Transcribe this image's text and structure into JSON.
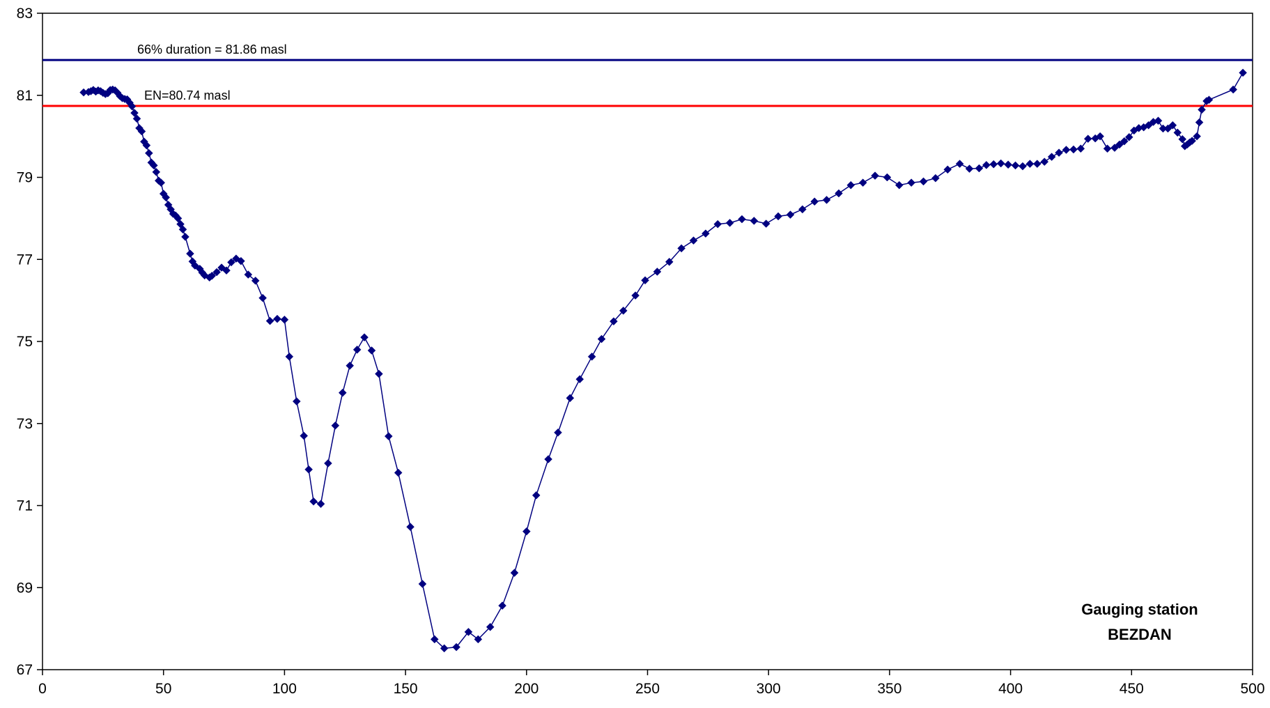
{
  "chart_data": {
    "type": "line",
    "title": "",
    "xlabel": "",
    "ylabel": "",
    "xlim": [
      0,
      500
    ],
    "ylim": [
      67,
      83
    ],
    "xticks": [
      "0",
      "50",
      "100",
      "150",
      "200",
      "250",
      "300",
      "350",
      "400",
      "450",
      "500"
    ],
    "yticks": [
      "67",
      "69",
      "71",
      "73",
      "75",
      "77",
      "79",
      "81",
      "83"
    ],
    "grid": false,
    "legend": "none",
    "annotation": {
      "line1": "Gauging station",
      "line2": "BEZDAN"
    },
    "reference_lines": [
      {
        "label": "66% duration = 81.86 masl",
        "y": 81.86,
        "color": "#000080"
      },
      {
        "label": "EN=80.74 masl",
        "y": 80.74,
        "color": "#ff0000"
      }
    ],
    "series": [
      {
        "color": "#000080",
        "marker": "diamond",
        "points": [
          [
            17,
            81.07
          ],
          [
            19,
            81.08
          ],
          [
            20,
            81.1
          ],
          [
            21,
            81.13
          ],
          [
            22,
            81.09
          ],
          [
            23,
            81.12
          ],
          [
            24,
            81.1
          ],
          [
            25,
            81.06
          ],
          [
            26,
            81.03
          ],
          [
            27,
            81.05
          ],
          [
            28,
            81.13
          ],
          [
            29,
            81.14
          ],
          [
            30,
            81.12
          ],
          [
            31,
            81.06
          ],
          [
            32,
            80.98
          ],
          [
            33,
            80.93
          ],
          [
            34,
            80.91
          ],
          [
            35,
            80.9
          ],
          [
            36,
            80.82
          ],
          [
            37,
            80.73
          ],
          [
            38,
            80.57
          ],
          [
            39,
            80.43
          ],
          [
            40,
            80.2
          ],
          [
            41,
            80.12
          ],
          [
            42,
            79.87
          ],
          [
            43,
            79.78
          ],
          [
            44,
            79.59
          ],
          [
            45,
            79.36
          ],
          [
            46,
            79.29
          ],
          [
            47,
            79.13
          ],
          [
            48,
            78.92
          ],
          [
            49,
            78.87
          ],
          [
            50,
            78.6
          ],
          [
            51,
            78.51
          ],
          [
            52,
            78.33
          ],
          [
            53,
            78.22
          ],
          [
            54,
            78.11
          ],
          [
            55,
            78.07
          ],
          [
            56,
            78.0
          ],
          [
            57,
            77.86
          ],
          [
            58,
            77.73
          ],
          [
            59,
            77.55
          ],
          [
            61,
            77.14
          ],
          [
            62,
            76.95
          ],
          [
            63,
            76.85
          ],
          [
            65,
            76.77
          ],
          [
            66,
            76.68
          ],
          [
            67,
            76.61
          ],
          [
            69,
            76.56
          ],
          [
            70,
            76.6
          ],
          [
            72,
            76.69
          ],
          [
            74,
            76.8
          ],
          [
            76,
            76.73
          ],
          [
            78,
            76.93
          ],
          [
            80,
            77.02
          ],
          [
            82,
            76.96
          ],
          [
            85,
            76.63
          ],
          [
            88,
            76.48
          ],
          [
            91,
            76.06
          ],
          [
            94,
            75.5
          ],
          [
            97,
            75.55
          ],
          [
            100,
            75.53
          ],
          [
            102,
            74.63
          ],
          [
            105,
            73.54
          ],
          [
            108,
            72.7
          ],
          [
            110,
            71.88
          ],
          [
            112,
            71.1
          ],
          [
            115,
            71.04
          ],
          [
            118,
            72.03
          ],
          [
            121,
            72.95
          ],
          [
            124,
            73.75
          ],
          [
            127,
            74.41
          ],
          [
            130,
            74.8
          ],
          [
            133,
            75.1
          ],
          [
            136,
            74.78
          ],
          [
            139,
            74.21
          ],
          [
            143,
            72.69
          ],
          [
            147,
            71.8
          ],
          [
            152,
            70.48
          ],
          [
            157,
            69.09
          ],
          [
            162,
            67.74
          ],
          [
            166,
            67.52
          ],
          [
            171,
            67.55
          ],
          [
            176,
            67.92
          ],
          [
            180,
            67.74
          ],
          [
            185,
            68.04
          ],
          [
            190,
            68.56
          ],
          [
            195,
            69.36
          ],
          [
            200,
            70.37
          ],
          [
            204,
            71.25
          ],
          [
            209,
            72.13
          ],
          [
            213,
            72.78
          ],
          [
            218,
            73.62
          ],
          [
            222,
            74.08
          ],
          [
            227,
            74.63
          ],
          [
            231,
            75.06
          ],
          [
            236,
            75.49
          ],
          [
            240,
            75.75
          ],
          [
            245,
            76.12
          ],
          [
            249,
            76.49
          ],
          [
            254,
            76.7
          ],
          [
            259,
            76.94
          ],
          [
            264,
            77.27
          ],
          [
            269,
            77.46
          ],
          [
            274,
            77.63
          ],
          [
            279,
            77.86
          ],
          [
            284,
            77.89
          ],
          [
            289,
            77.98
          ],
          [
            294,
            77.94
          ],
          [
            299,
            77.87
          ],
          [
            304,
            78.05
          ],
          [
            309,
            78.09
          ],
          [
            314,
            78.22
          ],
          [
            319,
            78.41
          ],
          [
            324,
            78.45
          ],
          [
            329,
            78.61
          ],
          [
            334,
            78.81
          ],
          [
            339,
            78.87
          ],
          [
            344,
            79.04
          ],
          [
            349,
            79.0
          ],
          [
            354,
            78.81
          ],
          [
            359,
            78.87
          ],
          [
            364,
            78.9
          ],
          [
            369,
            78.98
          ],
          [
            374,
            79.19
          ],
          [
            379,
            79.33
          ],
          [
            383,
            79.21
          ],
          [
            387,
            79.22
          ],
          [
            390,
            79.3
          ],
          [
            393,
            79.32
          ],
          [
            396,
            79.34
          ],
          [
            399,
            79.31
          ],
          [
            402,
            79.29
          ],
          [
            405,
            79.27
          ],
          [
            408,
            79.33
          ],
          [
            411,
            79.33
          ],
          [
            414,
            79.38
          ],
          [
            417,
            79.5
          ],
          [
            420,
            79.6
          ],
          [
            423,
            79.67
          ],
          [
            426,
            79.68
          ],
          [
            429,
            79.7
          ],
          [
            432,
            79.94
          ],
          [
            435,
            79.95
          ],
          [
            437,
            80.0
          ],
          [
            440,
            79.7
          ],
          [
            443,
            79.72
          ],
          [
            445,
            79.8
          ],
          [
            447,
            79.88
          ],
          [
            449,
            79.98
          ],
          [
            451,
            80.14
          ],
          [
            453,
            80.2
          ],
          [
            455,
            80.22
          ],
          [
            457,
            80.27
          ],
          [
            459,
            80.35
          ],
          [
            461,
            80.38
          ],
          [
            463,
            80.19
          ],
          [
            465,
            80.19
          ],
          [
            467,
            80.27
          ],
          [
            469,
            80.09
          ],
          [
            471,
            79.93
          ],
          [
            472,
            79.76
          ],
          [
            473,
            79.8
          ],
          [
            474,
            79.85
          ],
          [
            475,
            79.89
          ],
          [
            477,
            80.0
          ],
          [
            478,
            80.34
          ],
          [
            479,
            80.65
          ],
          [
            481,
            80.86
          ],
          [
            482,
            80.89
          ],
          [
            492,
            81.14
          ],
          [
            496,
            81.55
          ]
        ]
      }
    ]
  }
}
